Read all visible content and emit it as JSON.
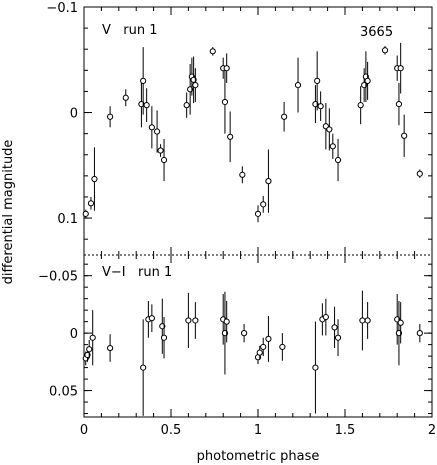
{
  "chart_data": [
    {
      "type": "scatter",
      "label": "V   run 1",
      "annotation": "3665",
      "ylim": [
        0.135,
        -0.1
      ],
      "yticks": [
        -0.1,
        0,
        0.1
      ],
      "ytick_labels": [
        "−0.1",
        "0",
        "0.1"
      ],
      "xlim": [
        0,
        2
      ],
      "points": [
        {
          "x": 0.01,
          "y": 0.096,
          "err": 0.004
        },
        {
          "x": 0.04,
          "y": 0.086,
          "err": 0.006
        },
        {
          "x": 0.06,
          "y": 0.063,
          "err": 0.03
        },
        {
          "x": 0.15,
          "y": 0.004,
          "err": 0.01
        },
        {
          "x": 0.24,
          "y": -0.014,
          "err": 0.008
        },
        {
          "x": 0.33,
          "y": -0.008,
          "err": 0.022
        },
        {
          "x": 0.34,
          "y": -0.03,
          "err": 0.032
        },
        {
          "x": 0.36,
          "y": -0.007,
          "err": 0.016
        },
        {
          "x": 0.39,
          "y": 0.014,
          "err": 0.02
        },
        {
          "x": 0.42,
          "y": 0.018,
          "err": 0.02
        },
        {
          "x": 0.44,
          "y": 0.036,
          "err": 0.006
        },
        {
          "x": 0.46,
          "y": 0.045,
          "err": 0.02
        },
        {
          "x": 0.59,
          "y": -0.007,
          "err": 0.012
        },
        {
          "x": 0.61,
          "y": -0.022,
          "err": 0.024
        },
        {
          "x": 0.62,
          "y": -0.034,
          "err": 0.018
        },
        {
          "x": 0.63,
          "y": -0.031,
          "err": 0.022
        },
        {
          "x": 0.64,
          "y": -0.026,
          "err": 0.016
        },
        {
          "x": 0.74,
          "y": -0.058,
          "err": 0.004
        },
        {
          "x": 0.8,
          "y": -0.042,
          "err": 0.01
        },
        {
          "x": 0.81,
          "y": -0.01,
          "err": 0.03
        },
        {
          "x": 0.82,
          "y": -0.042,
          "err": 0.014
        },
        {
          "x": 0.84,
          "y": 0.023,
          "err": 0.024
        },
        {
          "x": 0.91,
          "y": 0.059,
          "err": 0.008
        },
        {
          "x": 1.0,
          "y": 0.096,
          "err": 0.008
        },
        {
          "x": 1.03,
          "y": 0.087,
          "err": 0.008
        },
        {
          "x": 1.06,
          "y": 0.065,
          "err": 0.03
        },
        {
          "x": 1.15,
          "y": 0.004,
          "err": 0.014
        },
        {
          "x": 1.23,
          "y": -0.026,
          "err": 0.026
        },
        {
          "x": 1.33,
          "y": -0.008,
          "err": 0.018
        },
        {
          "x": 1.34,
          "y": -0.03,
          "err": 0.028
        },
        {
          "x": 1.36,
          "y": -0.006,
          "err": 0.014
        },
        {
          "x": 1.39,
          "y": 0.013,
          "err": 0.022
        },
        {
          "x": 1.41,
          "y": 0.016,
          "err": 0.02
        },
        {
          "x": 1.43,
          "y": 0.032,
          "err": 0.012
        },
        {
          "x": 1.46,
          "y": 0.045,
          "err": 0.02
        },
        {
          "x": 1.59,
          "y": -0.007,
          "err": 0.018
        },
        {
          "x": 1.61,
          "y": -0.026,
          "err": 0.016
        },
        {
          "x": 1.62,
          "y": -0.034,
          "err": 0.024
        },
        {
          "x": 1.63,
          "y": -0.03,
          "err": 0.018
        },
        {
          "x": 1.73,
          "y": -0.059,
          "err": 0.004
        },
        {
          "x": 1.8,
          "y": -0.042,
          "err": 0.012
        },
        {
          "x": 1.81,
          "y": -0.008,
          "err": 0.02
        },
        {
          "x": 1.82,
          "y": -0.042,
          "err": 0.024
        },
        {
          "x": 1.84,
          "y": 0.022,
          "err": 0.02
        },
        {
          "x": 1.93,
          "y": 0.058,
          "err": 0.004
        }
      ]
    },
    {
      "type": "scatter",
      "label": "V−I   run 1",
      "ylim": [
        0.073,
        -0.068
      ],
      "yticks": [
        -0.05,
        0,
        0.05
      ],
      "ytick_labels": [
        "−0.05",
        "0",
        "0.05"
      ],
      "xlim": [
        0,
        2
      ],
      "xticks": [
        0,
        0.5,
        1,
        1.5,
        2
      ],
      "xtick_labels": [
        "0",
        "0.5",
        "1",
        "1.5",
        "2"
      ],
      "xlabel": "photometric phase",
      "points": [
        {
          "x": 0.01,
          "y": 0.022,
          "err": 0.006
        },
        {
          "x": 0.02,
          "y": 0.019,
          "err": 0.006
        },
        {
          "x": 0.03,
          "y": 0.014,
          "err": 0.008
        },
        {
          "x": 0.05,
          "y": 0.004,
          "err": 0.024
        },
        {
          "x": 0.15,
          "y": 0.013,
          "err": 0.012
        },
        {
          "x": 0.34,
          "y": 0.03,
          "err": 0.042
        },
        {
          "x": 0.37,
          "y": -0.012,
          "err": 0.016
        },
        {
          "x": 0.39,
          "y": -0.013,
          "err": 0.012
        },
        {
          "x": 0.45,
          "y": -0.006,
          "err": 0.024
        },
        {
          "x": 0.46,
          "y": 0.004,
          "err": 0.018
        },
        {
          "x": 0.6,
          "y": -0.011,
          "err": 0.024
        },
        {
          "x": 0.64,
          "y": -0.011,
          "err": 0.016
        },
        {
          "x": 0.8,
          "y": -0.012,
          "err": 0.022
        },
        {
          "x": 0.81,
          "y": 0.0,
          "err": 0.036
        },
        {
          "x": 0.82,
          "y": -0.01,
          "err": 0.018
        },
        {
          "x": 0.92,
          "y": 0.0,
          "err": 0.008
        },
        {
          "x": 1.0,
          "y": 0.021,
          "err": 0.006
        },
        {
          "x": 1.01,
          "y": 0.017,
          "err": 0.006
        },
        {
          "x": 1.03,
          "y": 0.012,
          "err": 0.008
        },
        {
          "x": 1.06,
          "y": 0.005,
          "err": 0.02
        },
        {
          "x": 1.14,
          "y": 0.012,
          "err": 0.012
        },
        {
          "x": 1.33,
          "y": 0.03,
          "err": 0.04
        },
        {
          "x": 1.37,
          "y": -0.012,
          "err": 0.014
        },
        {
          "x": 1.39,
          "y": -0.014,
          "err": 0.016
        },
        {
          "x": 1.44,
          "y": -0.005,
          "err": 0.018
        },
        {
          "x": 1.46,
          "y": 0.004,
          "err": 0.016
        },
        {
          "x": 1.6,
          "y": -0.011,
          "err": 0.026
        },
        {
          "x": 1.63,
          "y": -0.011,
          "err": 0.016
        },
        {
          "x": 1.8,
          "y": -0.012,
          "err": 0.022
        },
        {
          "x": 1.81,
          "y": 0.0,
          "err": 0.028
        },
        {
          "x": 1.82,
          "y": -0.009,
          "err": 0.018
        },
        {
          "x": 1.93,
          "y": 0.0,
          "err": 0.008
        }
      ]
    }
  ],
  "shared": {
    "ylabel": "differential magnitude"
  }
}
